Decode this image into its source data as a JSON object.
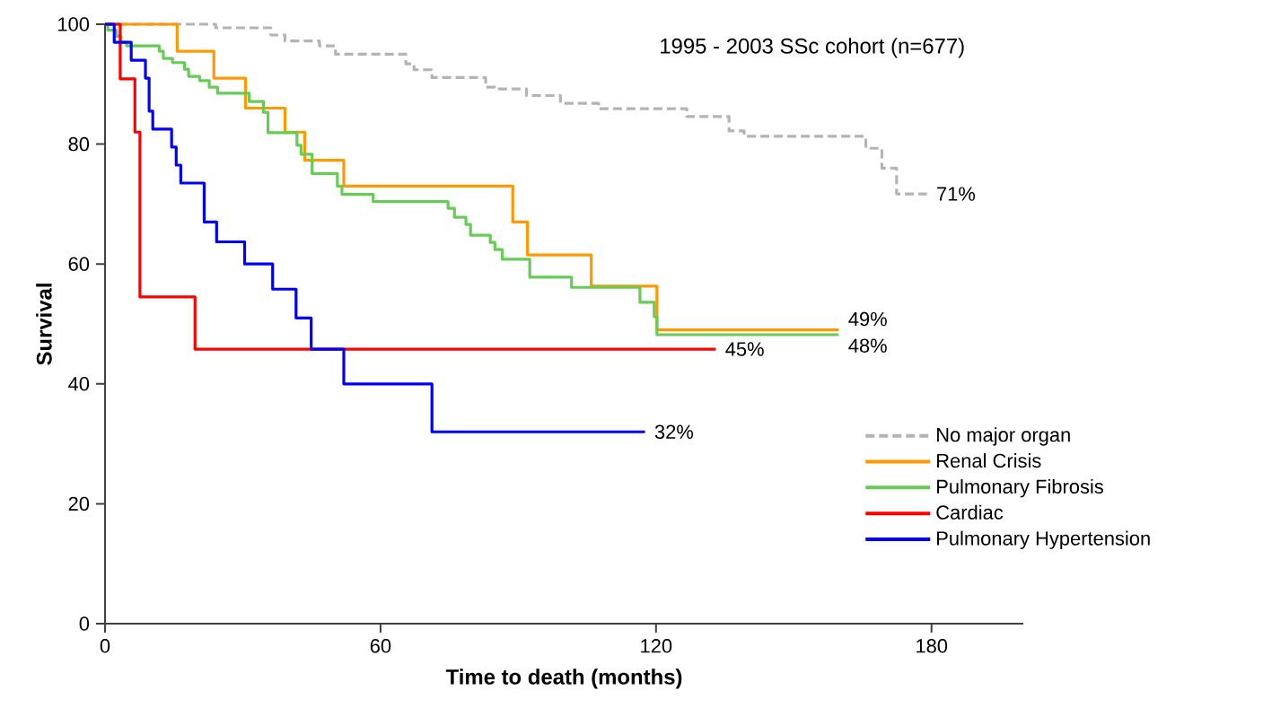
{
  "chart_data": {
    "type": "step",
    "title": "1995 - 2003 SSc cohort (n=677)",
    "xlabel": "Time to death (months)",
    "ylabel": "Survival",
    "xlim": [
      0,
      200
    ],
    "ylim": [
      0,
      100
    ],
    "xticks": [
      0,
      60,
      120,
      180
    ],
    "yticks": [
      0,
      20,
      40,
      60,
      80,
      100
    ],
    "grid": false,
    "legend": "right",
    "marker": "none",
    "series": [
      {
        "name": "No major organ",
        "color": "#b4b4b4",
        "line_style": "dashed",
        "x": [
          0,
          24.1,
          36.1,
          39.2,
          46.7,
          50.2,
          65.5,
          67.3,
          71.2,
          82.9,
          84.9,
          91.8,
          99.2,
          107.5,
          126.7,
          135.9,
          139.2,
          165.7,
          169.2,
          172.4,
          179.0
        ],
        "values": [
          100,
          99.4,
          98.2,
          97.2,
          96.4,
          95.0,
          93.4,
          92.4,
          91.1,
          89.5,
          89.2,
          88.1,
          86.8,
          85.9,
          84.6,
          82.2,
          81.3,
          79.3,
          76.0,
          71.7,
          71.7
        ]
      },
      {
        "name": "Renal Crisis",
        "color": "#ff9900",
        "line_style": "solid",
        "x": [
          0,
          15.7,
          23.7,
          30.6,
          39.2,
          43.5,
          52.0,
          88.8,
          92.0,
          105.9,
          120.2,
          159.8
        ],
        "values": [
          100,
          95.5,
          91,
          86,
          82,
          77.3,
          73,
          67,
          61.5,
          56.3,
          49,
          49
        ]
      },
      {
        "name": "Pulmonary Fibrosis",
        "color": "#66cc55",
        "line_style": "solid",
        "x": [
          0,
          0.6,
          2.5,
          3.5,
          4.7,
          11.8,
          12.7,
          14.7,
          17.3,
          18.2,
          20.6,
          22.7,
          24.5,
          31.4,
          34.5,
          35.5,
          41.8,
          42.7,
          45.1,
          50.6,
          51.6,
          58.4,
          74.7,
          76.1,
          78.6,
          79.6,
          83.9,
          84.9,
          86.5,
          92.5,
          101.6,
          116.5,
          119.6,
          120.2,
          159.8
        ],
        "values": [
          100,
          99,
          98,
          97,
          96.4,
          95.5,
          94.3,
          93.6,
          92.5,
          91.3,
          90.6,
          89.5,
          88.5,
          87.1,
          85.3,
          81.9,
          79.8,
          78.3,
          75.1,
          73,
          71.6,
          70.4,
          69.3,
          67.8,
          66.6,
          64.8,
          63.6,
          62.4,
          60.8,
          57.8,
          56.1,
          53.6,
          51.2,
          48.2,
          48.2
        ]
      },
      {
        "name": "Cardiac",
        "color": "#ff0000",
        "line_style": "solid",
        "x": [
          0,
          3.3,
          6.5,
          7.6,
          19.6,
          133.0
        ],
        "values": [
          100,
          90.9,
          82,
          54.5,
          45.8,
          45.8
        ]
      },
      {
        "name": "Pulmonary Hypertension",
        "color": "#0000ff",
        "line_style": "solid",
        "x": [
          0,
          2.0,
          5.7,
          8.8,
          9.6,
          10.4,
          14.5,
          15.5,
          16.5,
          21.6,
          24.3,
          30.4,
          36.5,
          41.6,
          44.9,
          52.0,
          71.2,
          117.6
        ],
        "values": [
          100,
          97,
          94,
          91,
          85.5,
          82.5,
          79.5,
          76.5,
          73.5,
          67,
          63.7,
          60,
          55.8,
          51,
          45.8,
          40,
          32,
          32
        ]
      }
    ],
    "annotations": [
      {
        "text": "71%",
        "x": 179.0,
        "y": 71.7
      },
      {
        "text": "49%",
        "x": 159.8,
        "y": 49
      },
      {
        "text": "48%",
        "x": 159.8,
        "y": 48.2
      },
      {
        "text": "45%",
        "x": 133.0,
        "y": 45.8
      },
      {
        "text": "32%",
        "x": 117.6,
        "y": 32
      }
    ]
  }
}
